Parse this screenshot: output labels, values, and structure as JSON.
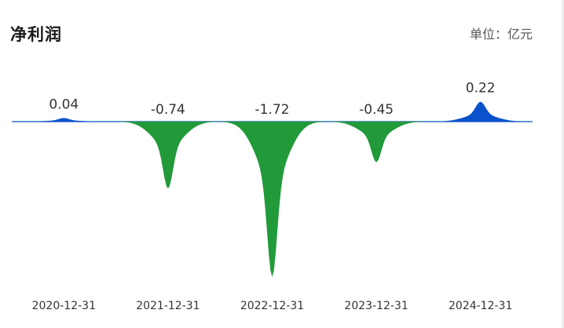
{
  "header": {
    "title": "净利润",
    "unit": "单位：亿元"
  },
  "chart_data": {
    "type": "area",
    "categories": [
      "2020-12-31",
      "2021-12-31",
      "2022-12-31",
      "2023-12-31",
      "2024-12-31"
    ],
    "values": [
      0.04,
      -0.74,
      -1.72,
      -0.45,
      0.22
    ],
    "value_labels": [
      "0.04",
      "-0.74",
      "-1.72",
      "-0.45",
      "0.22"
    ],
    "title": "",
    "xlabel": "",
    "ylabel": "",
    "grid": false,
    "colors": {
      "positive": "#0a52cc",
      "negative": "#229a3a",
      "baseline": "#0a52cc"
    }
  }
}
